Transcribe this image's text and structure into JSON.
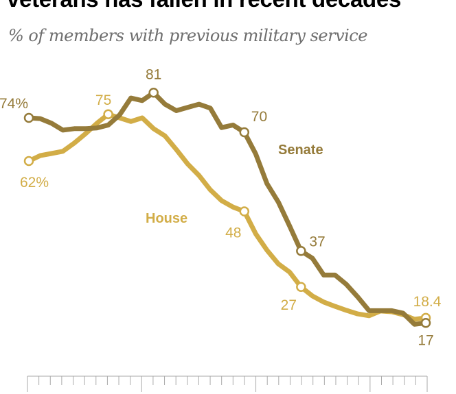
{
  "title": "veterans has fallen in recent decades",
  "subtitle": "% of members with previous military service",
  "chart_data": {
    "type": "line",
    "title": "veterans has fallen in recent decades",
    "subtitle": "% of members with previous military service",
    "xlabel": "",
    "ylabel": "",
    "x": [
      0,
      1,
      2,
      3,
      4,
      5,
      6,
      7,
      8,
      9,
      10,
      11,
      12,
      13,
      14,
      15,
      16,
      17,
      18,
      19,
      20,
      21,
      22,
      23,
      24,
      25,
      26,
      27,
      28,
      29,
      30,
      31,
      32,
      33,
      34,
      35
    ],
    "ylim": [
      0,
      85
    ],
    "grid": false,
    "legend": "none",
    "series": [
      {
        "name": "Senate",
        "color": "#957b3a",
        "values": [
          74,
          73.8,
          72.5,
          70.6,
          71,
          71,
          71.2,
          72,
          74.8,
          79.5,
          78.8,
          81,
          77.8,
          76,
          76.9,
          77.8,
          76.7,
          71.3,
          72,
          70,
          64,
          55.7,
          50.6,
          43.9,
          37,
          35,
          30.3,
          30.3,
          27.7,
          24.2,
          20.4,
          20.4,
          20.4,
          19.7,
          16.6,
          17
        ],
        "labels": [
          {
            "index": 0,
            "text": "74%"
          },
          {
            "index": 11,
            "text": "81"
          },
          {
            "index": 19,
            "text": "70"
          },
          {
            "index": 24,
            "text": "37"
          },
          {
            "index": 35,
            "text": "17"
          }
        ]
      },
      {
        "name": "House",
        "color": "#d2ad47",
        "values": [
          62,
          63.5,
          64.1,
          64.7,
          67,
          69.6,
          72.5,
          75,
          74,
          73,
          74,
          71,
          69,
          65.2,
          61.2,
          58,
          54,
          51,
          49.2,
          48,
          41.8,
          37.2,
          33.4,
          31.1,
          27,
          24.5,
          22.8,
          21.6,
          20.5,
          19.5,
          19,
          20.3,
          20.1,
          19.3,
          18,
          18.4
        ],
        "labels": [
          {
            "index": 0,
            "text": "62%"
          },
          {
            "index": 7,
            "text": "75"
          },
          {
            "index": 19,
            "text": "48"
          },
          {
            "index": 24,
            "text": "27"
          },
          {
            "index": 35,
            "text": "18.4"
          }
        ]
      }
    ],
    "x_ticks": 36,
    "major_tick_every": 10
  }
}
